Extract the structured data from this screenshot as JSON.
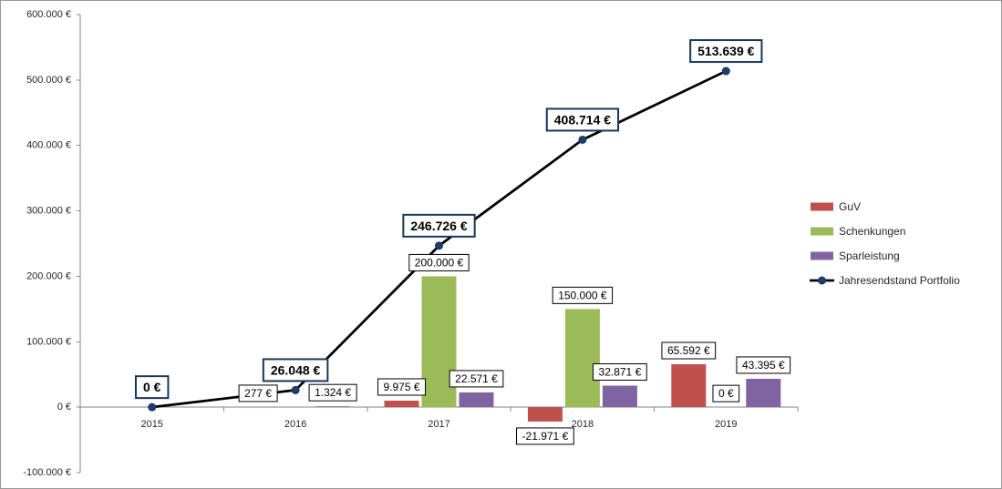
{
  "chart_data": {
    "type": "bar",
    "categories": [
      "2015",
      "2016",
      "2017",
      "2018",
      "2019"
    ],
    "ylim": [
      -100000,
      600000
    ],
    "yticks": [
      600000,
      500000,
      400000,
      300000,
      200000,
      100000,
      0,
      -100000
    ],
    "ytick_labels": [
      "600.000 €",
      "500.000 €",
      "400.000 €",
      "300.000 €",
      "200.000 €",
      "100.000 €",
      "0 €",
      "-100.000 €"
    ],
    "grid": false,
    "legend_position": "right",
    "bar_series": [
      {
        "name": "GuV",
        "color": "#C0504D",
        "values": [
          null,
          277,
          9975,
          -21971,
          65592
        ],
        "labels": [
          null,
          "277 €",
          "9.975 €",
          "-21.971 €",
          "65.592 €"
        ]
      },
      {
        "name": "Schenkungen",
        "color": "#9BBB59",
        "values": [
          null,
          null,
          200000,
          150000,
          0
        ],
        "labels": [
          null,
          null,
          "200.000 €",
          "150.000 €",
          "0 €"
        ]
      },
      {
        "name": "Sparleistung",
        "color": "#8064A2",
        "values": [
          null,
          1324,
          22571,
          32871,
          43395
        ],
        "labels": [
          null,
          "1.324 €",
          "22.571 €",
          "32.871 €",
          "43.395 €"
        ]
      }
    ],
    "line_series": {
      "name": "Jahresendstand Portfolio",
      "color": "#000000",
      "marker_color": "#1F3C6E",
      "label_border_color": "#17375E",
      "values": [
        0,
        26048,
        246726,
        408714,
        513639
      ],
      "labels": [
        "0 €",
        "26.048 €",
        "246.726 €",
        "408.714 €",
        "513.639 €"
      ]
    }
  }
}
